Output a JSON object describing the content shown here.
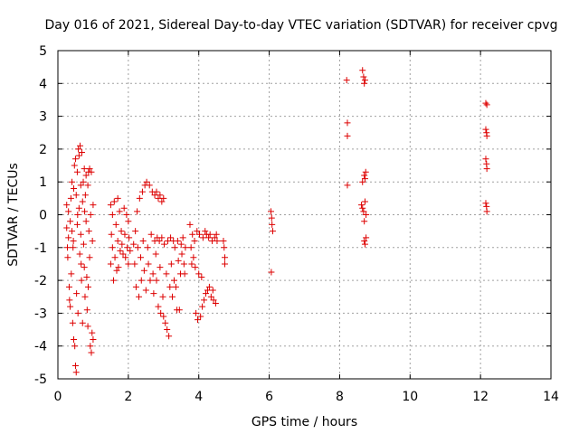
{
  "chart_data": {
    "type": "scatter",
    "title": "Day 016 of 2021, Sidereal Day-to-day VTEC variation (SDTVAR) for receiver cpvg",
    "xlabel": "GPS time / hours",
    "ylabel": "SDTVAR / TECUs",
    "xlim": [
      0,
      14
    ],
    "ylim": [
      -5,
      5
    ],
    "xticks": [
      0,
      2,
      4,
      6,
      8,
      10,
      12,
      14
    ],
    "yticks": [
      -5,
      -4,
      -3,
      -2,
      -1,
      0,
      1,
      2,
      3,
      4,
      5
    ],
    "grid": true,
    "marker": "plus",
    "color": "#dd0000",
    "series": [
      {
        "name": "SDTVAR",
        "points": [
          [
            0.25,
            0.3
          ],
          [
            0.25,
            -0.4
          ],
          [
            0.27,
            -1.0
          ],
          [
            0.28,
            -1.3
          ],
          [
            0.3,
            0.1
          ],
          [
            0.3,
            -0.7
          ],
          [
            0.32,
            -2.2
          ],
          [
            0.33,
            -2.6
          ],
          [
            0.35,
            -0.2
          ],
          [
            0.35,
            -2.8
          ],
          [
            0.37,
            0.5
          ],
          [
            0.38,
            -1.8
          ],
          [
            0.4,
            1.0
          ],
          [
            0.4,
            -0.5
          ],
          [
            0.42,
            -3.3
          ],
          [
            0.43,
            -1.0
          ],
          [
            0.45,
            0.8
          ],
          [
            0.45,
            -3.8
          ],
          [
            0.47,
            1.5
          ],
          [
            0.48,
            -4.0
          ],
          [
            0.5,
            1.7
          ],
          [
            0.5,
            -4.6
          ],
          [
            0.52,
            0.6
          ],
          [
            0.52,
            -4.8
          ],
          [
            0.53,
            -2.4
          ],
          [
            0.55,
            1.3
          ],
          [
            0.55,
            -0.3
          ],
          [
            0.57,
            -3.0
          ],
          [
            0.58,
            2.0
          ],
          [
            0.6,
            1.8
          ],
          [
            0.6,
            0.2
          ],
          [
            0.62,
            -1.2
          ],
          [
            0.63,
            2.1
          ],
          [
            0.65,
            0.9
          ],
          [
            0.65,
            -0.6
          ],
          [
            0.67,
            -2.0
          ],
          [
            0.68,
            1.9
          ],
          [
            0.7,
            0.4
          ],
          [
            0.7,
            -3.3
          ],
          [
            0.72,
            1.0
          ],
          [
            0.73,
            -0.9
          ],
          [
            0.75,
            1.4
          ],
          [
            0.75,
            -1.6
          ],
          [
            0.77,
            -2.5
          ],
          [
            0.78,
            0.6
          ],
          [
            0.8,
            1.2
          ],
          [
            0.8,
            -0.2
          ],
          [
            0.82,
            -1.9
          ],
          [
            0.83,
            -2.9
          ],
          [
            0.85,
            0.9
          ],
          [
            0.85,
            -3.4
          ],
          [
            0.87,
            1.3
          ],
          [
            0.88,
            -0.5
          ],
          [
            0.9,
            1.4
          ],
          [
            0.9,
            -1.3
          ],
          [
            0.92,
            -4.0
          ],
          [
            0.93,
            0.0
          ],
          [
            0.95,
            1.3
          ],
          [
            0.95,
            -4.2
          ],
          [
            0.97,
            -3.6
          ],
          [
            0.98,
            -0.8
          ],
          [
            1.0,
            0.3
          ],
          [
            1.0,
            -3.8
          ],
          [
            0.44,
            -0.8
          ],
          [
            0.56,
            0.0
          ],
          [
            0.66,
            -1.5
          ],
          [
            0.76,
            0.1
          ],
          [
            0.86,
            -2.2
          ],
          [
            1.5,
            0.3
          ],
          [
            1.5,
            -1.5
          ],
          [
            1.52,
            -0.6
          ],
          [
            1.55,
            0.0
          ],
          [
            1.55,
            -1.0
          ],
          [
            1.58,
            -2.0
          ],
          [
            1.6,
            0.4
          ],
          [
            1.62,
            -1.3
          ],
          [
            1.65,
            -0.3
          ],
          [
            1.67,
            -1.7
          ],
          [
            1.7,
            0.5
          ],
          [
            1.7,
            -0.8
          ],
          [
            1.72,
            -1.6
          ],
          [
            1.75,
            0.1
          ],
          [
            1.77,
            -1.1
          ],
          [
            1.8,
            -0.5
          ],
          [
            1.82,
            -0.9
          ],
          [
            1.85,
            -1.2
          ],
          [
            1.88,
            0.2
          ],
          [
            1.9,
            -0.6
          ],
          [
            1.92,
            -1.3
          ],
          [
            1.95,
            0.0
          ],
          [
            1.97,
            -1.0
          ],
          [
            2.0,
            -0.2
          ],
          [
            2.0,
            -1.5
          ],
          [
            2.02,
            -0.7
          ],
          [
            2.05,
            -1.1
          ],
          [
            2.15,
            -0.9
          ],
          [
            2.18,
            -1.5
          ],
          [
            2.2,
            -0.5
          ],
          [
            2.22,
            -2.2
          ],
          [
            2.25,
            0.1
          ],
          [
            2.27,
            -1.0
          ],
          [
            2.3,
            -2.5
          ],
          [
            2.32,
            0.5
          ],
          [
            2.35,
            -1.3
          ],
          [
            2.37,
            -2.0
          ],
          [
            2.4,
            0.7
          ],
          [
            2.42,
            -0.8
          ],
          [
            2.45,
            -1.7
          ],
          [
            2.47,
            0.9
          ],
          [
            2.5,
            -2.3
          ],
          [
            2.52,
            1.0
          ],
          [
            2.55,
            -1.0
          ],
          [
            2.57,
            -1.5
          ],
          [
            2.6,
            0.9
          ],
          [
            2.62,
            -2.0
          ],
          [
            2.65,
            -0.6
          ],
          [
            2.68,
            0.7
          ],
          [
            2.7,
            -1.8
          ],
          [
            2.72,
            -2.4
          ],
          [
            2.75,
            -0.8
          ],
          [
            2.78,
            -1.2
          ],
          [
            2.8,
            -2.0
          ],
          [
            2.82,
            -0.7
          ],
          [
            2.85,
            -2.8
          ],
          [
            2.88,
            -0.8
          ],
          [
            2.9,
            -1.6
          ],
          [
            2.92,
            -3.0
          ],
          [
            2.95,
            -0.7
          ],
          [
            2.98,
            -2.5
          ],
          [
            3.0,
            -3.1
          ],
          [
            3.02,
            -0.9
          ],
          [
            3.05,
            -3.3
          ],
          [
            3.08,
            -1.8
          ],
          [
            3.1,
            -3.5
          ],
          [
            3.12,
            -0.8
          ],
          [
            3.15,
            -3.7
          ],
          [
            3.18,
            -2.2
          ],
          [
            3.2,
            -0.7
          ],
          [
            3.22,
            -1.5
          ],
          [
            3.25,
            -2.5
          ],
          [
            3.28,
            -0.8
          ],
          [
            3.3,
            -2.0
          ],
          [
            3.32,
            -1.0
          ],
          [
            3.35,
            -2.2
          ],
          [
            3.38,
            -2.9
          ],
          [
            3.4,
            -0.8
          ],
          [
            3.42,
            -1.4
          ],
          [
            3.45,
            -2.9
          ],
          [
            3.48,
            -1.8
          ],
          [
            3.5,
            -0.9
          ],
          [
            3.52,
            -1.2
          ],
          [
            3.55,
            -0.7
          ],
          [
            3.58,
            -1.5
          ],
          [
            3.6,
            -1.8
          ],
          [
            3.62,
            -1.0
          ],
          [
            2.75,
            0.6
          ],
          [
            2.8,
            0.7
          ],
          [
            2.85,
            0.5
          ],
          [
            2.9,
            0.6
          ],
          [
            2.95,
            0.4
          ],
          [
            3.0,
            0.5
          ],
          [
            3.75,
            -0.3
          ],
          [
            3.78,
            -1.0
          ],
          [
            3.8,
            -1.5
          ],
          [
            3.82,
            -0.6
          ],
          [
            3.85,
            -1.3
          ],
          [
            3.88,
            -0.8
          ],
          [
            3.9,
            -1.6
          ],
          [
            3.92,
            -3.0
          ],
          [
            3.95,
            -0.5
          ],
          [
            3.97,
            -3.2
          ],
          [
            4.0,
            -1.8
          ],
          [
            4.02,
            -0.6
          ],
          [
            4.05,
            -3.1
          ],
          [
            4.08,
            -1.9
          ],
          [
            4.1,
            -2.8
          ],
          [
            4.12,
            -0.7
          ],
          [
            4.15,
            -2.6
          ],
          [
            4.18,
            -0.5
          ],
          [
            4.2,
            -2.4
          ],
          [
            4.22,
            -0.6
          ],
          [
            4.25,
            -2.3
          ],
          [
            4.28,
            -0.7
          ],
          [
            4.3,
            -2.2
          ],
          [
            4.32,
            -0.6
          ],
          [
            4.35,
            -2.5
          ],
          [
            4.38,
            -0.8
          ],
          [
            4.4,
            -2.3
          ],
          [
            4.42,
            -2.6
          ],
          [
            4.45,
            -0.7
          ],
          [
            4.48,
            -2.7
          ],
          [
            4.5,
            -0.6
          ],
          [
            4.52,
            -0.8
          ],
          [
            4.7,
            -0.8
          ],
          [
            4.72,
            -1.0
          ],
          [
            4.74,
            -1.3
          ],
          [
            4.74,
            -1.5
          ],
          [
            6.05,
            0.1
          ],
          [
            6.07,
            -0.1
          ],
          [
            6.08,
            -0.3
          ],
          [
            6.1,
            -0.5
          ],
          [
            6.06,
            -1.75
          ],
          [
            8.2,
            4.1
          ],
          [
            8.22,
            2.8
          ],
          [
            8.22,
            2.4
          ],
          [
            8.22,
            0.9
          ],
          [
            8.65,
            4.4
          ],
          [
            8.68,
            4.2
          ],
          [
            8.7,
            4.0
          ],
          [
            8.72,
            4.1
          ],
          [
            8.65,
            1.0
          ],
          [
            8.7,
            1.2
          ],
          [
            8.72,
            1.1
          ],
          [
            8.74,
            1.3
          ],
          [
            8.62,
            0.3
          ],
          [
            8.65,
            0.2
          ],
          [
            8.68,
            0.1
          ],
          [
            8.7,
            -0.2
          ],
          [
            8.72,
            0.4
          ],
          [
            8.75,
            0.0
          ],
          [
            8.7,
            -0.8
          ],
          [
            8.72,
            -0.9
          ],
          [
            8.75,
            -0.7
          ],
          [
            12.15,
            3.4
          ],
          [
            12.18,
            3.35
          ],
          [
            12.15,
            2.6
          ],
          [
            12.17,
            2.5
          ],
          [
            12.18,
            2.4
          ],
          [
            12.15,
            1.7
          ],
          [
            12.17,
            1.55
          ],
          [
            12.18,
            1.4
          ],
          [
            12.15,
            0.35
          ],
          [
            12.17,
            0.25
          ],
          [
            12.18,
            0.1
          ]
        ]
      }
    ]
  }
}
